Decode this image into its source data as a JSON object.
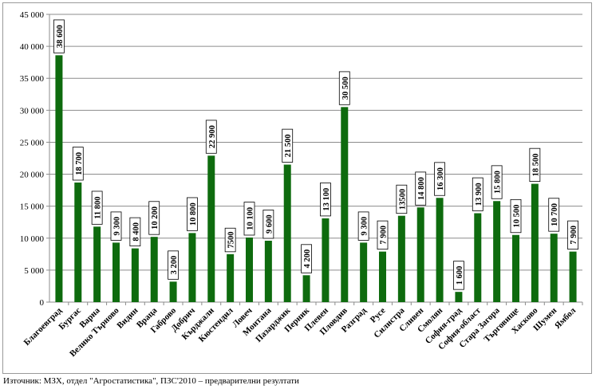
{
  "chart_data": {
    "type": "bar",
    "categories": [
      "Благоевград",
      "Бургас",
      "Варна",
      "Велико Търново",
      "Видин",
      "Враца",
      "Габрово",
      "Добрич",
      "Кърджали",
      "Кюстендил",
      "Ловеч",
      "Монтана",
      "Пазарджик",
      "Перник",
      "Плевен",
      "Пловдив",
      "Разград",
      "Русе",
      "Силистра",
      "Сливен",
      "Смолян",
      "София-град",
      "София-област",
      "Стара Загора",
      "Търговище",
      "Хасково",
      "Шумен",
      "Ямбол"
    ],
    "values": [
      38600,
      18700,
      11800,
      9300,
      8400,
      10200,
      3200,
      10800,
      22900,
      7500,
      10100,
      9600,
      21500,
      4200,
      13100,
      30500,
      9300,
      7900,
      13500,
      14800,
      16300,
      1600,
      13900,
      15800,
      10500,
      18500,
      10700,
      7900
    ],
    "data_labels": [
      "38 600",
      "18 700",
      "11 800",
      "9 300",
      "8 400",
      "10 200",
      "3 200",
      "10 800",
      "22 900",
      "7500",
      "10 100",
      "9 600",
      "21 500",
      "4 200",
      "13 100",
      "30 500",
      "9 300",
      "7 900",
      "13500",
      "14 800",
      "16 300",
      "1 600",
      "13 900",
      "15 800",
      "10 500",
      "18 500",
      "10 700",
      "7 900"
    ],
    "yticks": [
      "0",
      "5 000",
      "10 000",
      "15 000",
      "20 000",
      "25 000",
      "30 000",
      "35 000",
      "40 000",
      "45 000"
    ],
    "ylim": [
      0,
      45000
    ],
    "grid": true,
    "colors": {
      "bar": "#0e6b0e",
      "grid": "#8c8c8c",
      "axis": "#8c8c8c"
    },
    "title": "",
    "xlabel": "",
    "ylabel": ""
  },
  "source_note": "Източник: МЗХ, отдел \"Агростатистика\", ПЗС'2010 – предварителни резултати"
}
